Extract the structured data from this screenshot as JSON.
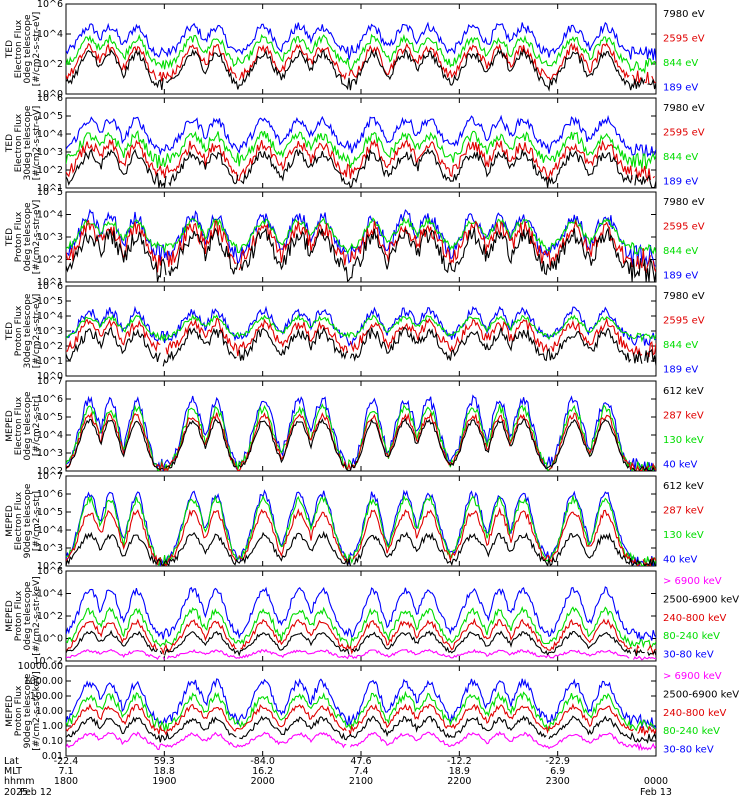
{
  "colors": {
    "black": "#000000",
    "red": "#e00000",
    "green": "#00dd00",
    "blue": "#0000ff",
    "magenta": "#ff00ff"
  },
  "chart_data": [
    {
      "type": "line",
      "ylabel_lines": [
        "TED",
        "Electron Flux",
        "0deg telescope",
        "[#/cm2-s-str-eV]"
      ],
      "yticks": [
        "10^0",
        "10^2",
        "10^4",
        "10^6"
      ],
      "ylog": true,
      "ylim": [
        1,
        1000000
      ],
      "legend": [
        {
          "label": "7980 eV",
          "color": "black"
        },
        {
          "label": "2595 eV",
          "color": "red"
        },
        {
          "label": "844 eV",
          "color": "green"
        },
        {
          "label": "189 eV",
          "color": "blue"
        }
      ],
      "series": [
        {
          "color": "blue",
          "base": 500,
          "peak": 30000,
          "noise": 0.5
        },
        {
          "color": "green",
          "base": 80,
          "peak": 5000,
          "noise": 0.45
        },
        {
          "color": "red",
          "base": 12,
          "peak": 1200,
          "noise": 0.5
        },
        {
          "color": "black",
          "base": 4,
          "peak": 500,
          "noise": 0.45
        }
      ]
    },
    {
      "type": "line",
      "ylabel_lines": [
        "TED",
        "Electron Flux",
        "30deg telescope",
        "[#/cm2-s-str-eV]"
      ],
      "yticks": [
        "10^1",
        "10^2",
        "10^3",
        "10^4",
        "10^5",
        "10^6"
      ],
      "ylog": true,
      "ylim": [
        10,
        1000000
      ],
      "legend": [
        {
          "label": "7980 eV",
          "color": "black"
        },
        {
          "label": "2595 eV",
          "color": "red"
        },
        {
          "label": "844 eV",
          "color": "green"
        },
        {
          "label": "189 eV",
          "color": "blue"
        }
      ],
      "series": [
        {
          "color": "blue",
          "base": 1500,
          "peak": 60000,
          "noise": 0.4
        },
        {
          "color": "green",
          "base": 300,
          "peak": 8000,
          "noise": 0.45
        },
        {
          "color": "red",
          "base": 60,
          "peak": 2500,
          "noise": 0.5
        },
        {
          "color": "black",
          "base": 20,
          "peak": 800,
          "noise": 0.45
        }
      ]
    },
    {
      "type": "line",
      "ylabel_lines": [
        "TED",
        "Proton Flux",
        "0deg telescope",
        "[#/cm2-s-str-eV]"
      ],
      "yticks": [
        "10^1",
        "10^2",
        "10^3",
        "10^4",
        "10^5"
      ],
      "ylog": true,
      "ylim": [
        10,
        100000
      ],
      "legend": [
        {
          "label": "7980 eV",
          "color": "black"
        },
        {
          "label": "2595 eV",
          "color": "red"
        },
        {
          "label": "844 eV",
          "color": "green"
        },
        {
          "label": "189 eV",
          "color": "blue"
        }
      ],
      "series": [
        {
          "color": "blue",
          "base": 150,
          "peak": 8000,
          "noise": 0.5
        },
        {
          "color": "green",
          "base": 300,
          "peak": 5000,
          "noise": 0.25
        },
        {
          "color": "red",
          "base": 80,
          "peak": 2500,
          "noise": 0.6
        },
        {
          "color": "black",
          "base": 30,
          "peak": 1200,
          "noise": 0.6
        }
      ]
    },
    {
      "type": "line",
      "ylabel_lines": [
        "TED",
        "Proton Flux",
        "30deg telescope",
        "[#/cm2-s-str-eV]"
      ],
      "yticks": [
        "10^0",
        "10^1",
        "10^2",
        "10^3",
        "10^4",
        "10^5",
        "10^6"
      ],
      "ylog": true,
      "ylim": [
        1,
        1000000
      ],
      "legend": [
        {
          "label": "7980 eV",
          "color": "black"
        },
        {
          "label": "2595 eV",
          "color": "red"
        },
        {
          "label": "844 eV",
          "color": "green"
        },
        {
          "label": "189 eV",
          "color": "blue"
        }
      ],
      "series": [
        {
          "color": "blue",
          "base": 300,
          "peak": 20000,
          "noise": 0.5
        },
        {
          "color": "green",
          "base": 400,
          "peak": 8000,
          "noise": 0.25
        },
        {
          "color": "red",
          "base": 60,
          "peak": 3000,
          "noise": 0.6
        },
        {
          "color": "black",
          "base": 15,
          "peak": 800,
          "noise": 0.6
        }
      ]
    },
    {
      "type": "line",
      "ylabel_lines": [
        "MEPED",
        "Electron Flux",
        "0deg telescope",
        "[#/cm2-s-str]"
      ],
      "yticks": [
        "10^2",
        "10^3",
        "10^4",
        "10^5",
        "10^6",
        "10^7"
      ],
      "ylog": true,
      "ylim": [
        100,
        10000000
      ],
      "legend": [
        {
          "label": "612 keV",
          "color": "black"
        },
        {
          "label": "287 keV",
          "color": "red"
        },
        {
          "label": "130 keV",
          "color": "green"
        },
        {
          "label": "40 keV",
          "color": "blue"
        }
      ],
      "series": [
        {
          "color": "blue",
          "base": 150,
          "peak": 800000,
          "noise": 0.5
        },
        {
          "color": "green",
          "base": 130,
          "peak": 300000,
          "noise": 0.4
        },
        {
          "color": "red",
          "base": 120,
          "peak": 120000,
          "noise": 0.3
        },
        {
          "color": "black",
          "base": 110,
          "peak": 60000,
          "noise": 0.2
        }
      ]
    },
    {
      "type": "line",
      "ylabel_lines": [
        "MEPED",
        "Electron Flux",
        "90deg telescope",
        "[#/cm2-s-str]"
      ],
      "yticks": [
        "10^2",
        "10^3",
        "10^4",
        "10^5",
        "10^6",
        "10^7"
      ],
      "ylog": true,
      "ylim": [
        100,
        10000000
      ],
      "legend": [
        {
          "label": "612 keV",
          "color": "black"
        },
        {
          "label": "287 keV",
          "color": "red"
        },
        {
          "label": "130 keV",
          "color": "green"
        },
        {
          "label": "40 keV",
          "color": "blue"
        }
      ],
      "series": [
        {
          "color": "blue",
          "base": 200,
          "peak": 1000000,
          "noise": 0.35
        },
        {
          "color": "green",
          "base": 180,
          "peak": 500000,
          "noise": 0.35
        },
        {
          "color": "red",
          "base": 150,
          "peak": 100000,
          "noise": 0.3
        },
        {
          "color": "black",
          "base": 120,
          "peak": 5000,
          "noise": 0.3
        }
      ]
    },
    {
      "type": "line",
      "ylabel_lines": [
        "MEPED",
        "Proton Flux",
        "0deg telescope",
        "[#/cm2-s-str-keV]"
      ],
      "yticks": [
        "10^-2",
        "10^0",
        "10^2",
        "10^4",
        "10^6"
      ],
      "ylog": true,
      "ylim": [
        0.01,
        1000000
      ],
      "legend": [
        {
          "label": "> 6900 keV",
          "color": "magenta"
        },
        {
          "label": "2500-6900 keV",
          "color": "black"
        },
        {
          "label": "240-800 keV",
          "color": "red"
        },
        {
          "label": "80-240 keV",
          "color": "green"
        },
        {
          "label": "30-80 keV",
          "color": "blue"
        }
      ],
      "series": [
        {
          "color": "blue",
          "base": 2,
          "peak": 20000,
          "noise": 0.5
        },
        {
          "color": "green",
          "base": 0.3,
          "peak": 300,
          "noise": 0.5
        },
        {
          "color": "red",
          "base": 0.1,
          "peak": 30,
          "noise": 0.4
        },
        {
          "color": "black",
          "base": 0.05,
          "peak": 3,
          "noise": 0.3
        },
        {
          "color": "magenta",
          "base": 0.02,
          "peak": 0.08,
          "noise": 0.2
        }
      ]
    },
    {
      "type": "line",
      "ylabel_lines": [
        "MEPED",
        "Proton Flux",
        "90deg telescope",
        "[#/cm2-s-str-keV]"
      ],
      "yticks": [
        "0.01",
        "0.10",
        "1.00",
        "10.00",
        "100.00",
        "1000.00",
        "10000.00"
      ],
      "ylog": true,
      "ylim": [
        0.01,
        10000
      ],
      "legend": [
        {
          "label": "> 6900 keV",
          "color": "magenta"
        },
        {
          "label": "2500-6900 keV",
          "color": "black"
        },
        {
          "label": "240-800 keV",
          "color": "red"
        },
        {
          "label": "80-240 keV",
          "color": "green"
        },
        {
          "label": "30-80 keV",
          "color": "blue"
        }
      ],
      "series": [
        {
          "color": "blue",
          "base": 2,
          "peak": 800,
          "noise": 0.45
        },
        {
          "color": "green",
          "base": 1,
          "peak": 100,
          "noise": 0.4
        },
        {
          "color": "red",
          "base": 0.5,
          "peak": 20,
          "noise": 0.3
        },
        {
          "color": "black",
          "base": 0.15,
          "peak": 3,
          "noise": 0.3
        },
        {
          "color": "magenta",
          "base": 0.04,
          "peak": 0.3,
          "noise": 0.2
        }
      ]
    }
  ],
  "passes": [
    {
      "center": 0.04,
      "width": 0.035
    },
    {
      "center": 0.075,
      "width": 0.03
    },
    {
      "center": 0.12,
      "width": 0.03
    },
    {
      "center": 0.215,
      "width": 0.035
    },
    {
      "center": 0.255,
      "width": 0.03
    },
    {
      "center": 0.335,
      "width": 0.035
    },
    {
      "center": 0.395,
      "width": 0.035
    },
    {
      "center": 0.435,
      "width": 0.035
    },
    {
      "center": 0.52,
      "width": 0.03
    },
    {
      "center": 0.575,
      "width": 0.035
    },
    {
      "center": 0.615,
      "width": 0.035
    },
    {
      "center": 0.69,
      "width": 0.035
    },
    {
      "center": 0.735,
      "width": 0.03
    },
    {
      "center": 0.775,
      "width": 0.035
    },
    {
      "center": 0.86,
      "width": 0.035
    },
    {
      "center": 0.915,
      "width": 0.035
    }
  ],
  "xaxis": {
    "row_labels": [
      "Lat",
      "MLT",
      "hhmm",
      "2025"
    ],
    "ticks": [
      {
        "lat": "-22.4",
        "mlt": "7.1",
        "hhmm": "1800",
        "date": "Feb 12"
      },
      {
        "lat": "59.3",
        "mlt": "18.8",
        "hhmm": "1900",
        "date": ""
      },
      {
        "lat": "-84.0",
        "mlt": "16.2",
        "hhmm": "2000",
        "date": ""
      },
      {
        "lat": "47.6",
        "mlt": "7.4",
        "hhmm": "2100",
        "date": ""
      },
      {
        "lat": "-12.2",
        "mlt": "18.9",
        "hhmm": "2200",
        "date": ""
      },
      {
        "lat": "-22.9",
        "mlt": "6.9",
        "hhmm": "2300",
        "date": ""
      },
      {
        "lat": "",
        "mlt": "",
        "hhmm": "0000",
        "date": "Feb 13"
      }
    ]
  }
}
